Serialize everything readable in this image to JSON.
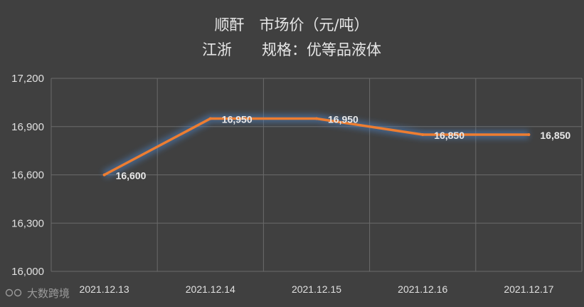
{
  "chart_data": {
    "type": "line",
    "title_lines": [
      "顺酐　市场价（元/吨）",
      "江浙　　规格：优等品液体"
    ],
    "categories": [
      "2021.12.13",
      "2021.12.14",
      "2021.12.15",
      "2021.12.16",
      "2021.12.17"
    ],
    "series": [
      {
        "values": [
          16600,
          16950,
          16950,
          16850,
          16850
        ]
      }
    ],
    "data_labels": [
      "16,600",
      "16,950",
      "16,950",
      "16,850",
      "16,850"
    ],
    "ylim": [
      16000,
      17200
    ],
    "yticks": [
      16000,
      16300,
      16600,
      16900,
      17200
    ],
    "ytick_labels": [
      "16,000",
      "16,300",
      "16,600",
      "16,900",
      "17,200"
    ],
    "grid": true,
    "legend": "none",
    "colors": {
      "line": "#ED7D31",
      "grid": "#6a6a6a",
      "glow": "#4a7fc0"
    }
  },
  "watermark": "大数跨境"
}
